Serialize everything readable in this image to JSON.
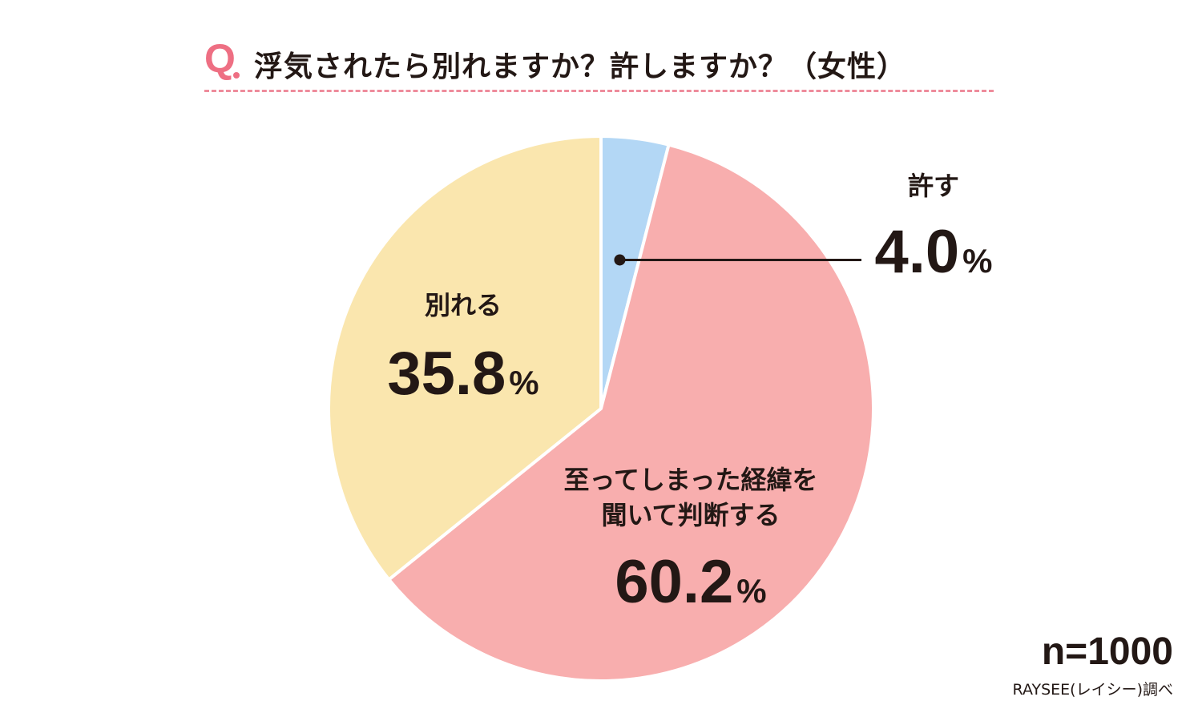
{
  "header": {
    "q_mark": "Q",
    "title": "浮気されたら別れますか？許しますか？（女性）"
  },
  "chart_data": {
    "type": "pie",
    "title": "浮気されたら別れますか？許しますか？（女性）",
    "slices": [
      {
        "label": "許す",
        "value": 4.0,
        "value_text": "4.0",
        "unit": "%",
        "color": "#b3d7f5"
      },
      {
        "label": "至ってしまった経緯を\n聞いて判断する",
        "value": 60.2,
        "value_text": "60.2",
        "unit": "%",
        "color": "#f8aeae"
      },
      {
        "label": "別れる",
        "value": 35.8,
        "value_text": "35.8",
        "unit": "%",
        "color": "#fae6ae"
      }
    ]
  },
  "footer": {
    "sample_size": "n=1000",
    "source": "RAYSEE(レイシー)調べ"
  },
  "colors": {
    "accent": "#ee6f83",
    "text": "#231815"
  }
}
